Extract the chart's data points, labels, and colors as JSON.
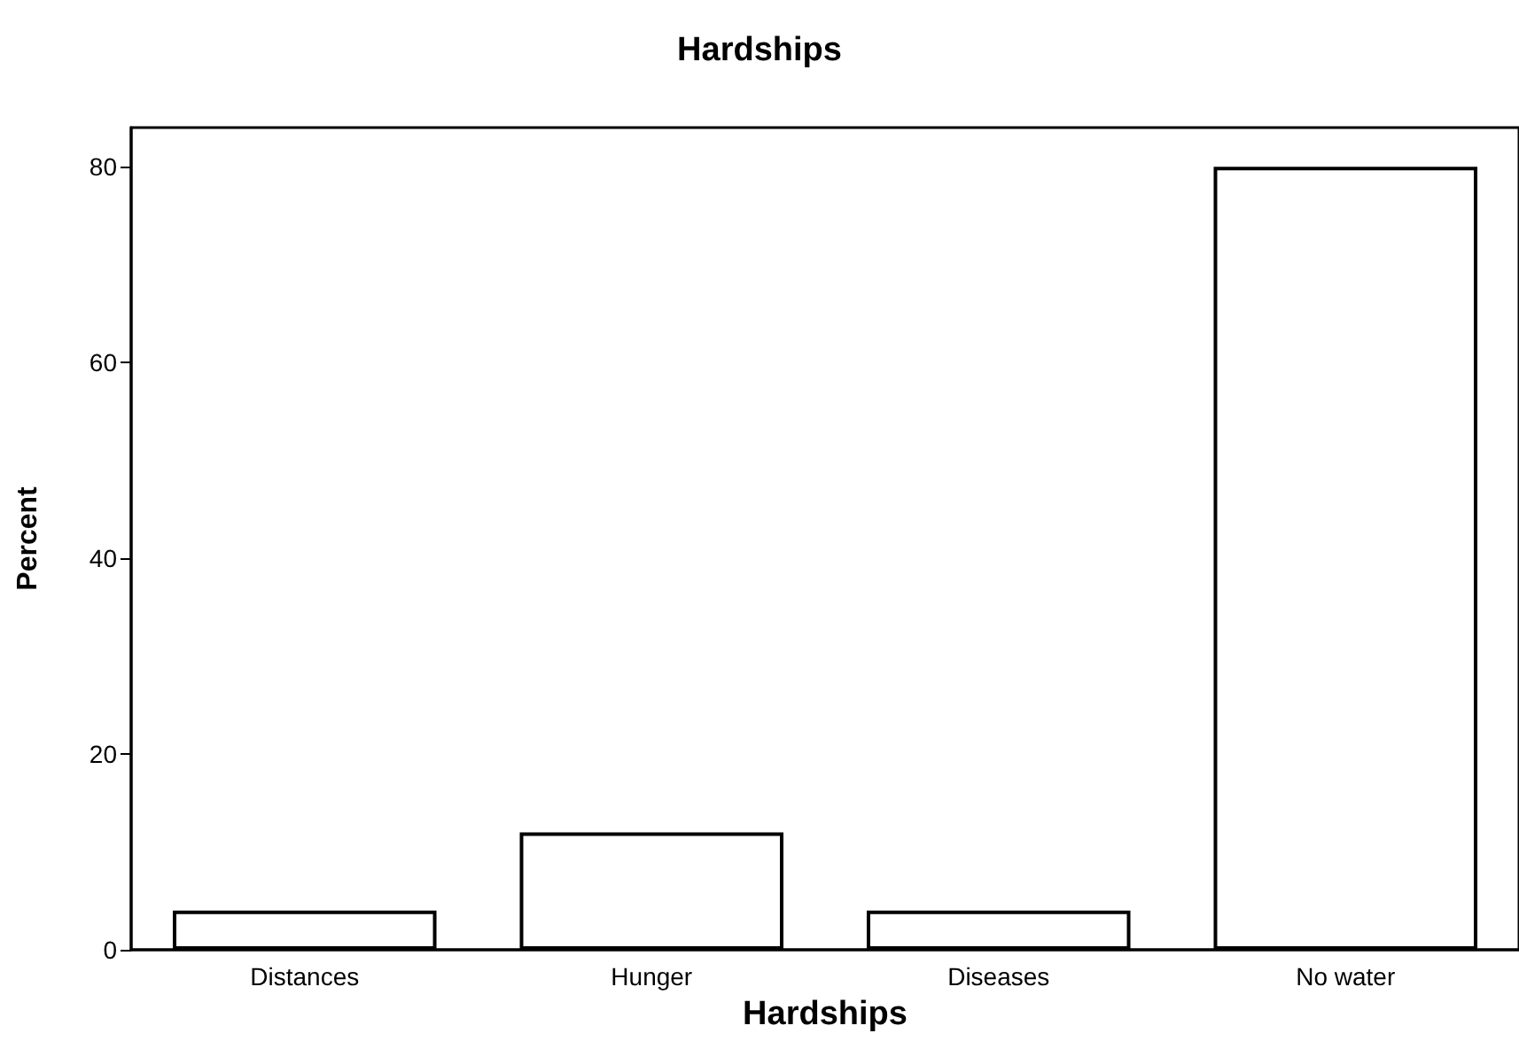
{
  "chart_data": {
    "type": "bar",
    "title": "Hardships",
    "xlabel": "Hardships",
    "ylabel": "Percent",
    "categories": [
      "Distances",
      "Hunger",
      "Diseases",
      "No water"
    ],
    "values": [
      4,
      12,
      4,
      80
    ],
    "color": "#ffffff",
    "ylim": [
      0,
      84
    ],
    "yticks": [
      0,
      20,
      40,
      60,
      80
    ],
    "grid": false
  }
}
